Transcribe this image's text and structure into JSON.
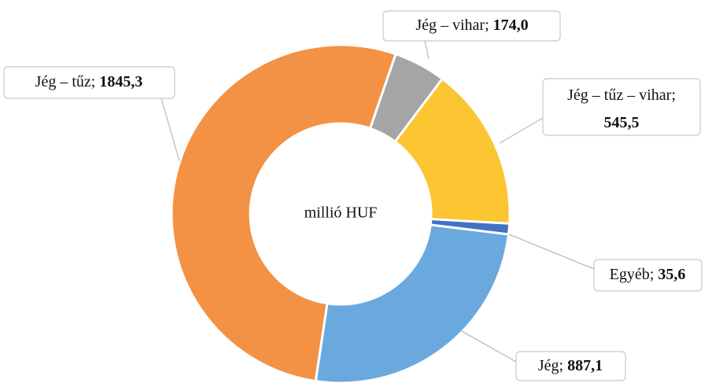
{
  "chart_data": {
    "type": "donut",
    "center_label": "millió HUF",
    "categories": [
      "Jég – vihar",
      "Jég – tűz – vihar",
      "Egyéb",
      "Jég",
      "Jég – tűz"
    ],
    "values": [
      174.0,
      545.5,
      35.6,
      887.1,
      1845.3
    ],
    "value_labels": [
      "174,0",
      "545,5",
      "35,6",
      "887,1",
      "1845,3"
    ],
    "label_separator": "; ",
    "colors": [
      "#a5a5a5",
      "#fbc532",
      "#4472c4",
      "#6aa9dd",
      "#f39244"
    ]
  }
}
